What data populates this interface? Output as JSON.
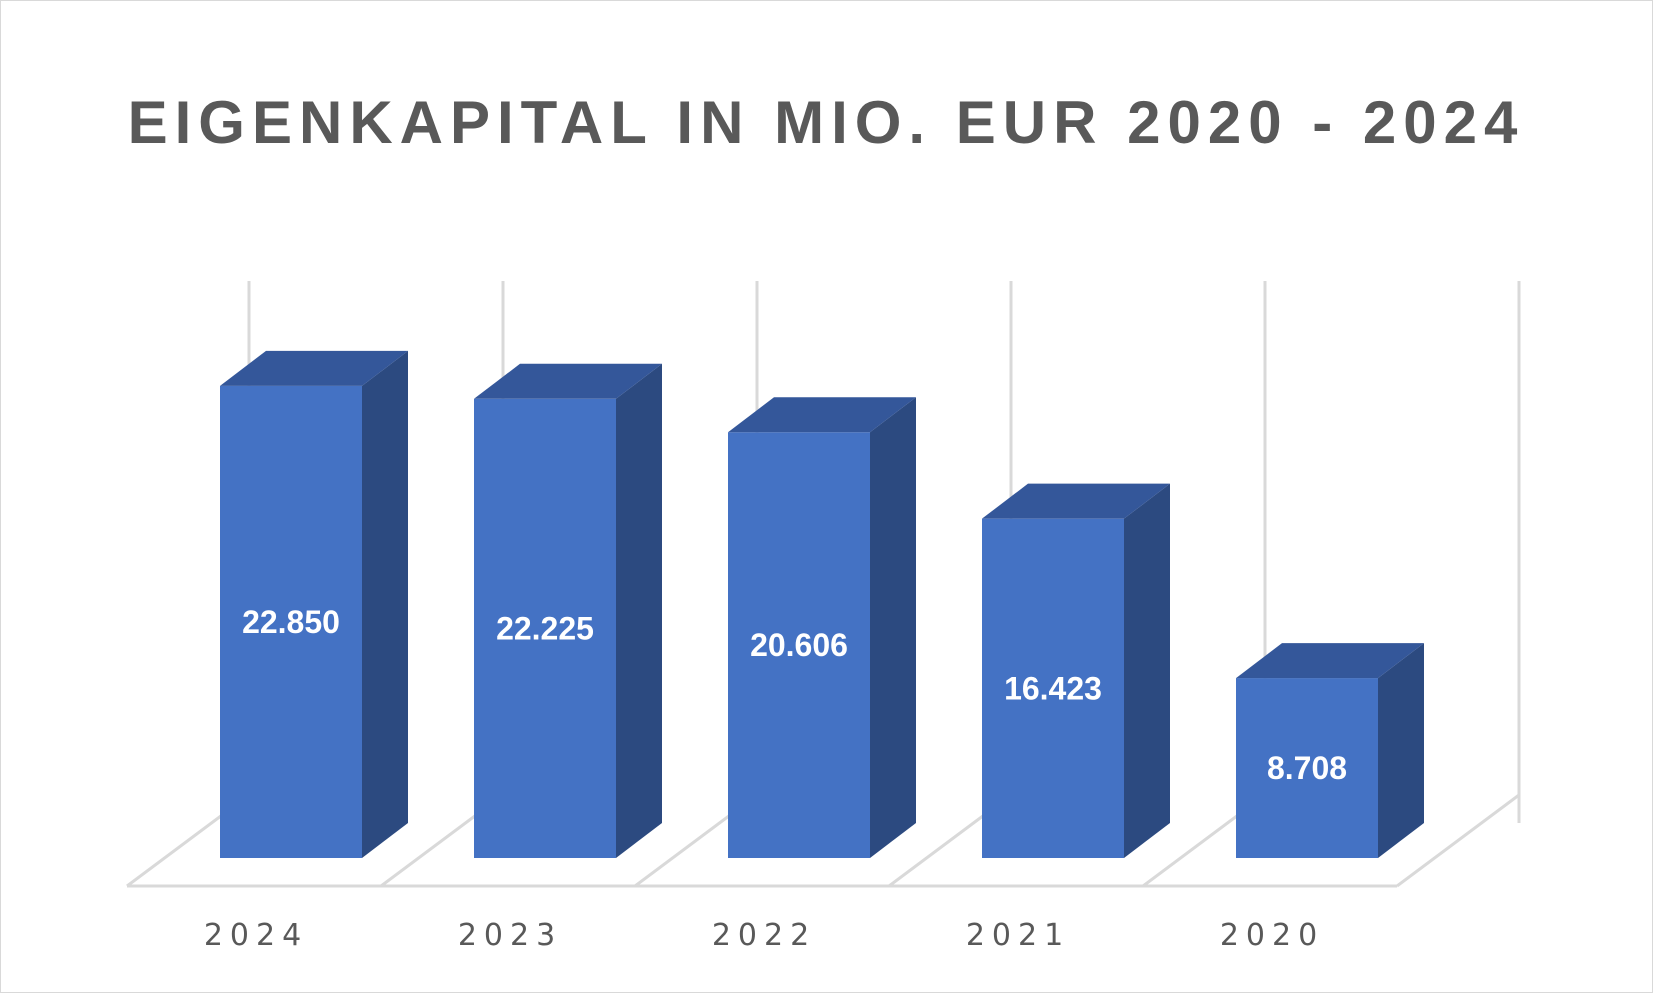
{
  "chart_data": {
    "type": "bar",
    "title": "EIGENKAPITAL IN MIO. EUR 2020 - 2024",
    "categories": [
      "2024",
      "2023",
      "2022",
      "2021",
      "2020"
    ],
    "values": [
      22850,
      22225,
      20606,
      16423,
      8708
    ],
    "data_labels": [
      "22.850",
      "22.225",
      "20.606",
      "16.423",
      "8.708"
    ],
    "xlabel": "",
    "ylabel": "",
    "ylim": [
      0,
      25000
    ],
    "grid": true,
    "legend": "none",
    "style": "3d-column",
    "colors": {
      "bar_front": "#4472c4",
      "bar_side": "#2c4a80",
      "bar_top": "#34579a",
      "gridline": "#d9d9d9",
      "text": "#595959"
    }
  }
}
